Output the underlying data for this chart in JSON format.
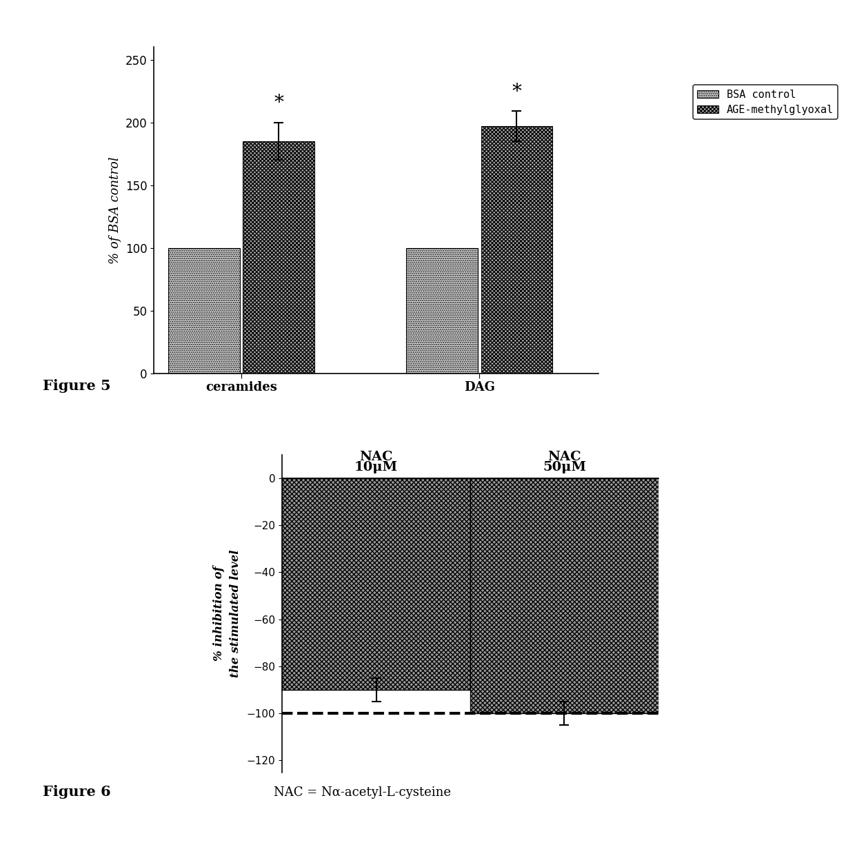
{
  "fig5": {
    "groups": [
      "ceramides",
      "DAG"
    ],
    "bsa_values": [
      100,
      100
    ],
    "age_values": [
      185,
      197
    ],
    "age_errors": [
      15,
      12
    ],
    "ylabel": "% of BSA control",
    "ylim": [
      0,
      260
    ],
    "yticks": [
      0,
      50,
      100,
      150,
      200,
      250
    ],
    "legend_labels": [
      "BSA control",
      "AGE-methylglyoxal"
    ],
    "figure_label": "Figure 5"
  },
  "fig6": {
    "values": [
      -90,
      -100
    ],
    "errors": [
      5,
      5
    ],
    "ylabel": "% inhibition of\nthe stimulated level",
    "ylim": [
      -125,
      10
    ],
    "yticks": [
      0,
      -20,
      -40,
      -60,
      -80,
      -100,
      -120
    ],
    "dashed_line_y": -100,
    "figure_label": "Figure 6",
    "nac_note": "NAC = Nα-acetyl-L-cysteine",
    "nac_labels": [
      "NAC\n10μM",
      "NAC\n50μM"
    ]
  },
  "background_color": "#ffffff"
}
